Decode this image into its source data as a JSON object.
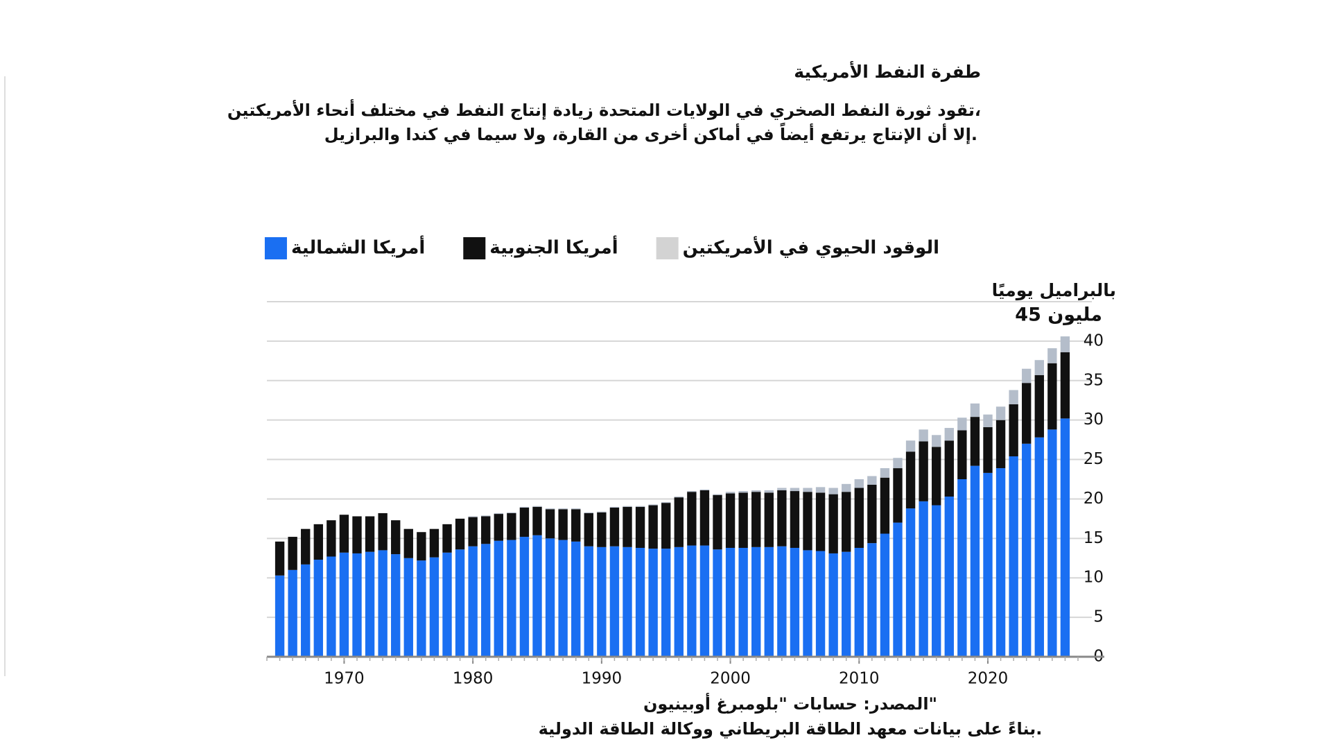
{
  "chart_data": {
    "type": "stacked_bar",
    "title": "طفرة النفط الأمريكية",
    "subtitle": [
      "تقود ثورة النفط الصخري في الولايات المتحدة زيادة إنتاج النفط في مختلف أنحاء الأمريكتين،",
      "إلا أن الإنتاج يرتفع أيضاً في أماكن أخرى من القارة، ولا سيما في كندا والبرازيل."
    ],
    "y_axis_label": "بالبراميل يوميًا",
    "source": [
      "المصدر: حسابات \"بلومبرغ أوبينيون\"",
      "بناءً على بيانات معهد الطاقة البريطاني ووكالة الطاقة الدولية."
    ],
    "x": [
      1965,
      1966,
      1967,
      1968,
      1969,
      1970,
      1971,
      1972,
      1973,
      1974,
      1975,
      1976,
      1977,
      1978,
      1979,
      1980,
      1981,
      1982,
      1983,
      1984,
      1985,
      1986,
      1987,
      1988,
      1989,
      1990,
      1991,
      1992,
      1993,
      1994,
      1995,
      1996,
      1997,
      1998,
      1999,
      2000,
      2001,
      2002,
      2003,
      2004,
      2005,
      2006,
      2007,
      2008,
      2009,
      2010,
      2011,
      2012,
      2013,
      2014,
      2015,
      2016,
      2017,
      2018,
      2019,
      2020,
      2021,
      2022,
      2023,
      2024,
      2025,
      2026
    ],
    "series": [
      {
        "name": "أمريكا الشمالية",
        "color": "#1a6ff2",
        "values": [
          10.3,
          11,
          11.7,
          12.3,
          12.7,
          13.2,
          13.1,
          13.3,
          13.5,
          13,
          12.5,
          12.2,
          12.6,
          13.2,
          13.6,
          14,
          14.3,
          14.7,
          14.8,
          15.2,
          15.4,
          15,
          14.8,
          14.6,
          14,
          13.9,
          14,
          13.9,
          13.8,
          13.7,
          13.7,
          13.9,
          14.1,
          14.1,
          13.6,
          13.8,
          13.8,
          13.9,
          13.9,
          14,
          13.8,
          13.5,
          13.4,
          13.1,
          13.3,
          13.8,
          14.4,
          15.6,
          17,
          18.8,
          19.7,
          19.2,
          20.3,
          22.5,
          24.2,
          23.3,
          23.9,
          25.4,
          27,
          27.8,
          28.8,
          30.2
        ]
      },
      {
        "name": "أمريكا الجنوبية",
        "color": "#111111",
        "values": [
          4.3,
          4.2,
          4.5,
          4.5,
          4.6,
          4.8,
          4.7,
          4.5,
          4.7,
          4.3,
          3.7,
          3.6,
          3.6,
          3.6,
          3.9,
          3.7,
          3.5,
          3.4,
          3.4,
          3.7,
          3.6,
          3.7,
          3.9,
          4.1,
          4.2,
          4.4,
          4.9,
          5.1,
          5.2,
          5.5,
          5.8,
          6.3,
          6.8,
          7,
          6.9,
          6.9,
          7,
          7,
          6.9,
          7.1,
          7.2,
          7.4,
          7.4,
          7.5,
          7.6,
          7.6,
          7.4,
          7.1,
          6.9,
          7.2,
          7.6,
          7.4,
          7.1,
          6.2,
          6.2,
          5.8,
          6.1,
          6.6,
          7.7,
          7.9,
          8.4,
          8.4
        ]
      },
      {
        "name": "الوقود الحيوي في الأمريكتين",
        "color": "#b4bdca",
        "legend_color": "#d3d3d3",
        "values": [
          0,
          0,
          0,
          0,
          0,
          0,
          0,
          0,
          0,
          0,
          0,
          0,
          0,
          0,
          0,
          0.1,
          0.1,
          0.1,
          0.1,
          0.1,
          0.1,
          0.1,
          0.1,
          0.1,
          0.1,
          0.1,
          0.1,
          0.1,
          0.1,
          0.1,
          0.1,
          0.1,
          0.1,
          0.1,
          0.1,
          0.2,
          0.2,
          0.2,
          0.3,
          0.3,
          0.4,
          0.5,
          0.7,
          0.8,
          1,
          1.1,
          1.1,
          1.2,
          1.3,
          1.4,
          1.5,
          1.5,
          1.6,
          1.6,
          1.7,
          1.6,
          1.7,
          1.8,
          1.8,
          1.9,
          1.9,
          2
        ]
      }
    ],
    "xlim": [
      1964,
      2027
    ],
    "xticks": [
      1970,
      1980,
      1990,
      2000,
      2010,
      2020
    ],
    "ylim": [
      0,
      45
    ],
    "yticks": [
      0,
      5,
      10,
      15,
      20,
      25,
      30,
      35,
      40,
      {
        "value": 45,
        "label": "45 مليون"
      }
    ],
    "grid": true
  }
}
